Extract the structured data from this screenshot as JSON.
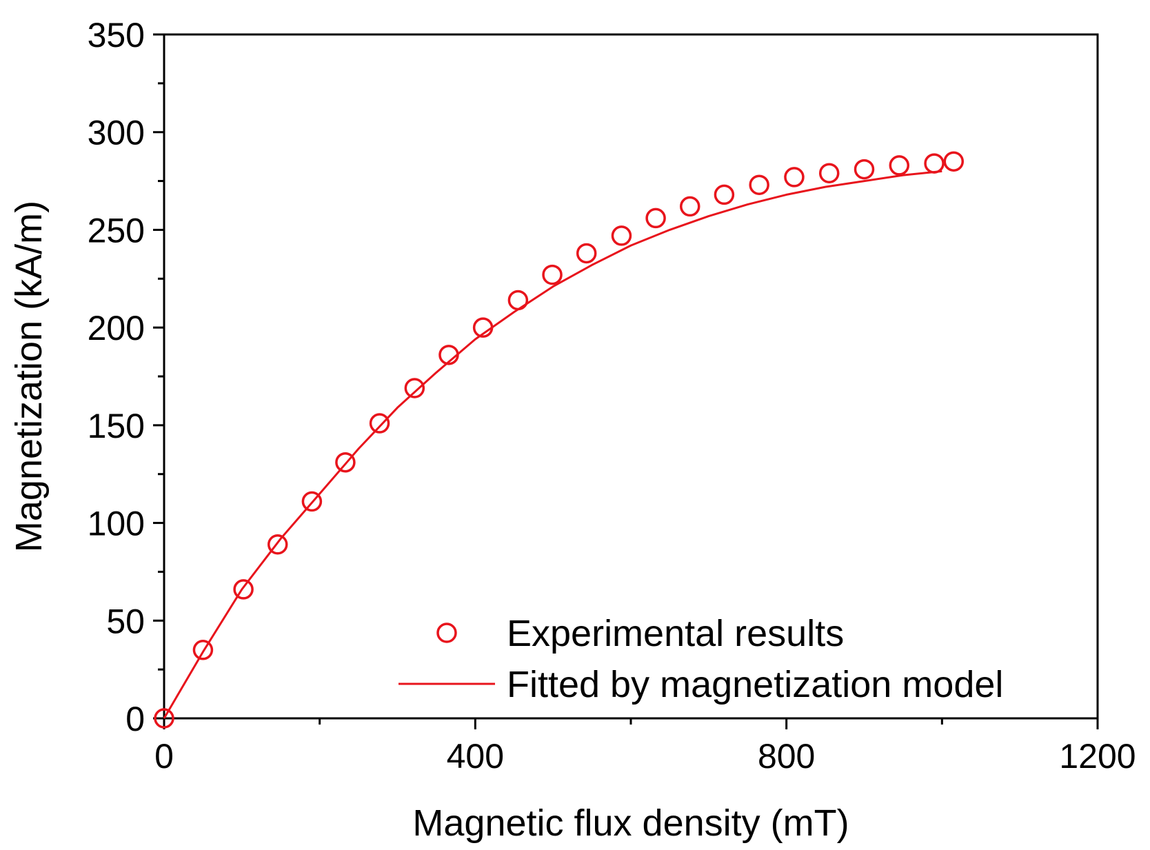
{
  "chart_data": {
    "type": "scatter",
    "title": "",
    "xlabel": "Magnetic flux density (mT)",
    "ylabel": "Magnetization (kA/m)",
    "xlim": [
      0,
      1200
    ],
    "ylim": [
      0,
      350
    ],
    "xticks": [
      0,
      400,
      800,
      1200
    ],
    "yticks": [
      0,
      50,
      100,
      150,
      200,
      250,
      300,
      350
    ],
    "x_minor_step": 200,
    "y_minor_step": 25,
    "grid": false,
    "legend_position": "bottom-right",
    "series": [
      {
        "name": "Experimental results",
        "kind": "scatter",
        "marker": "open-circle",
        "color": "#e8141c",
        "points": [
          [
            0,
            0
          ],
          [
            50,
            35
          ],
          [
            102,
            66
          ],
          [
            146,
            89
          ],
          [
            190,
            111
          ],
          [
            233,
            131
          ],
          [
            277,
            151
          ],
          [
            322,
            169
          ],
          [
            366,
            186
          ],
          [
            410,
            200
          ],
          [
            455,
            214
          ],
          [
            499,
            227
          ],
          [
            543,
            238
          ],
          [
            588,
            247
          ],
          [
            632,
            256
          ],
          [
            676,
            262
          ],
          [
            720,
            268
          ],
          [
            765,
            273
          ],
          [
            810,
            277
          ],
          [
            855,
            279
          ],
          [
            900,
            281
          ],
          [
            945,
            283
          ],
          [
            990,
            284
          ],
          [
            1015,
            285
          ]
        ]
      },
      {
        "name": "Fitted by magnetization model",
        "kind": "line",
        "color": "#e8141c",
        "points": [
          [
            0,
            0
          ],
          [
            50,
            34
          ],
          [
            100,
            66
          ],
          [
            150,
            92
          ],
          [
            200,
            115
          ],
          [
            250,
            138
          ],
          [
            300,
            159
          ],
          [
            350,
            177
          ],
          [
            400,
            194
          ],
          [
            450,
            208
          ],
          [
            500,
            221
          ],
          [
            550,
            232
          ],
          [
            600,
            242
          ],
          [
            650,
            250
          ],
          [
            700,
            257
          ],
          [
            750,
            263
          ],
          [
            800,
            268
          ],
          [
            850,
            272
          ],
          [
            900,
            275
          ],
          [
            950,
            278
          ],
          [
            1000,
            280
          ]
        ]
      }
    ]
  }
}
